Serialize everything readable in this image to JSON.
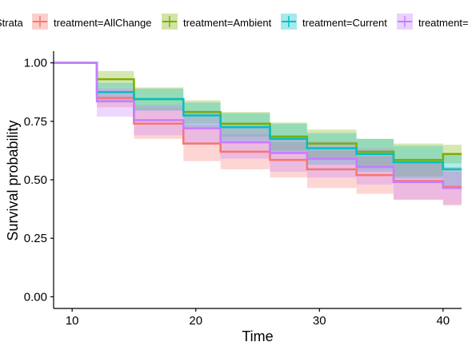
{
  "chart_data": {
    "type": "line",
    "step": true,
    "xlabel": "Time",
    "ylabel": "Survival probability",
    "xlim": [
      8.5,
      41.5
    ],
    "ylim": [
      -0.05,
      1.05
    ],
    "x_ticks": [
      10,
      20,
      30,
      40
    ],
    "y_ticks": [
      0.0,
      0.25,
      0.5,
      0.75,
      1.0
    ],
    "y_tick_labels": [
      "0.00",
      "0.25",
      "0.50",
      "0.75",
      "1.00"
    ],
    "grid": false,
    "legend": {
      "title": "Strata",
      "placement": "top",
      "entries": [
        "treatment=AllChange",
        "treatment=Ambient",
        "treatment=Current",
        "treatment=Elevated"
      ]
    },
    "series": [
      {
        "name": "treatment=AllChange",
        "color": "#F8766D",
        "times": [
          8.5,
          12,
          15,
          19,
          22,
          26,
          29,
          33,
          36,
          40,
          41.5
        ],
        "surv": [
          1.0,
          0.85,
          0.74,
          0.655,
          0.62,
          0.585,
          0.545,
          0.52,
          0.495,
          0.47,
          0.47
        ],
        "lower": [
          1.0,
          0.81,
          0.675,
          0.58,
          0.545,
          0.51,
          0.465,
          0.44,
          0.415,
          0.39,
          0.39
        ],
        "upper": [
          1.0,
          0.895,
          0.805,
          0.735,
          0.695,
          0.66,
          0.625,
          0.6,
          0.58,
          0.555,
          0.555
        ]
      },
      {
        "name": "treatment=Ambient",
        "color": "#7CAE00",
        "times": [
          8.5,
          12,
          15,
          19,
          22,
          26,
          29,
          33,
          36,
          40,
          41.5
        ],
        "surv": [
          1.0,
          0.93,
          0.845,
          0.79,
          0.74,
          0.685,
          0.655,
          0.62,
          0.585,
          0.61,
          0.61
        ],
        "lower": [
          1.0,
          0.895,
          0.8,
          0.74,
          0.685,
          0.625,
          0.59,
          0.55,
          0.515,
          0.57,
          0.57
        ],
        "upper": [
          1.0,
          0.965,
          0.895,
          0.84,
          0.79,
          0.745,
          0.715,
          0.675,
          0.655,
          0.65,
          0.65
        ]
      },
      {
        "name": "treatment=Current",
        "color": "#00BFC4",
        "times": [
          8.5,
          12,
          15,
          19,
          22,
          26,
          29,
          33,
          36,
          40,
          41.5
        ],
        "surv": [
          1.0,
          0.875,
          0.845,
          0.775,
          0.725,
          0.675,
          0.635,
          0.61,
          0.575,
          0.545,
          0.545
        ],
        "lower": [
          1.0,
          0.835,
          0.795,
          0.72,
          0.665,
          0.61,
          0.565,
          0.535,
          0.505,
          0.475,
          0.475
        ],
        "upper": [
          1.0,
          0.915,
          0.89,
          0.83,
          0.785,
          0.74,
          0.7,
          0.675,
          0.645,
          0.615,
          0.615
        ]
      },
      {
        "name": "treatment=Elevated",
        "color": "#C77CFF",
        "times": [
          8.5,
          12,
          15,
          19,
          22,
          26,
          29,
          33,
          36,
          40,
          41.5
        ],
        "surv": [
          1.0,
          0.835,
          0.755,
          0.72,
          0.66,
          0.615,
          0.59,
          0.555,
          0.49,
          0.465,
          0.465
        ],
        "lower": [
          1.0,
          0.77,
          0.69,
          0.65,
          0.59,
          0.535,
          0.51,
          0.48,
          0.415,
          0.395,
          0.395
        ],
        "upper": [
          1.0,
          0.89,
          0.82,
          0.79,
          0.74,
          0.69,
          0.665,
          0.635,
          0.57,
          0.535,
          0.535
        ]
      }
    ]
  }
}
